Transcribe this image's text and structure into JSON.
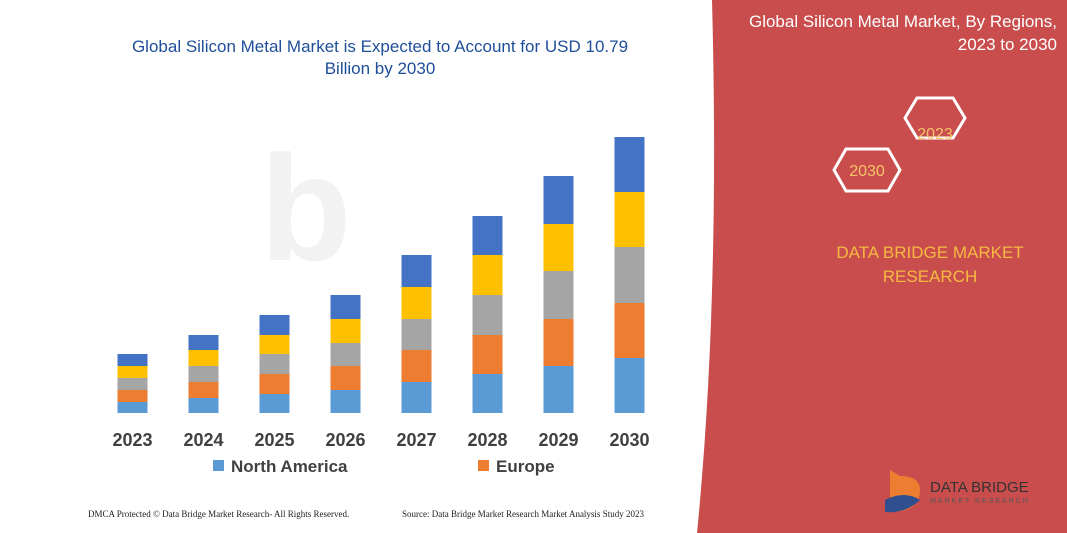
{
  "chart_data": {
    "type": "stacked_bar",
    "title": "Global Silicon Metal Market is Expected to Account for USD 10.79 Billion by 2030",
    "categories": [
      "2023",
      "2024",
      "2025",
      "2026",
      "2027",
      "2028",
      "2029",
      "2030"
    ],
    "series": [
      {
        "name": "North America",
        "color": "#5b9bd5",
        "values": [
          11,
          15,
          19,
          23,
          31,
          39,
          47,
          55
        ]
      },
      {
        "name": "Europe",
        "color": "#ed7d31",
        "values": [
          12,
          16,
          20,
          24,
          32,
          39,
          47,
          55
        ]
      },
      {
        "color": "#a5a5a5",
        "values": [
          12,
          16,
          20,
          23,
          31,
          40,
          48,
          56
        ]
      },
      {
        "color": "#ffc000",
        "values": [
          12,
          16,
          19,
          24,
          32,
          40,
          47,
          55
        ]
      },
      {
        "color": "#4472c4",
        "values": [
          12,
          15,
          20,
          24,
          32,
          39,
          48,
          55
        ]
      }
    ],
    "ylim": [
      0,
      293
    ]
  },
  "panel": {
    "title": "Global Silicon Metal Market, By Regions, 2023 to 2030",
    "hex_labels": [
      "2023",
      "2030"
    ],
    "brand": "DATA BRIDGE MARKET RESEARCH"
  },
  "logo": {
    "name": "DATA BRIDGE",
    "tagline": "MARKET RESEARCH"
  },
  "footer": {
    "left": "DMCA Protected © Data Bridge Market Research- All Rights Reserved.",
    "right": "Source: Data Bridge Market Research Market Analysis Study 2023"
  }
}
